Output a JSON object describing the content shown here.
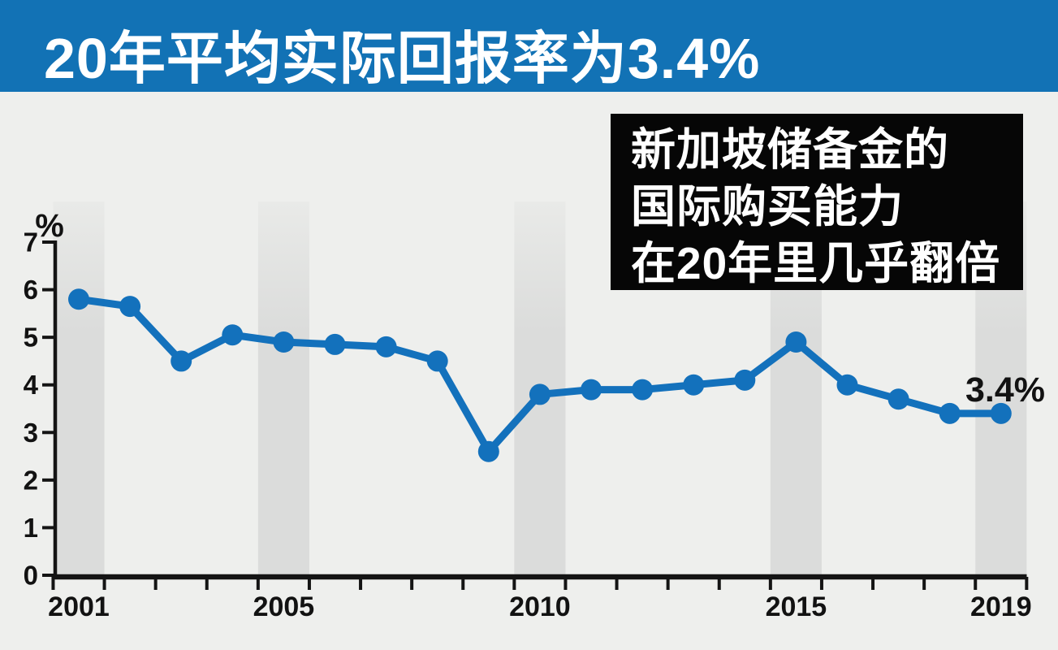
{
  "header": {
    "title": "20年平均实际回报率为3.4%"
  },
  "callout": {
    "lines": [
      "新加坡储备金的",
      "国际购买能力",
      "在20年里几乎翻倍"
    ]
  },
  "colors": {
    "header_bg": "#1272B5",
    "header_fg": "#FFFFFF",
    "background": "#EEEFED",
    "band": "#DBDCDB",
    "band_fade_top": "#E9EAE8",
    "line": "#1371BC",
    "axis": "#141414",
    "label": "#121212",
    "callout_bg": "#060606",
    "callout_fg": "#FFFFFF"
  },
  "chart_data": {
    "type": "line",
    "title": "20年平均实际回报率为3.4%",
    "xlabel": "",
    "ylabel": "%",
    "ylim": [
      0,
      7
    ],
    "y_ticks": [
      0,
      1,
      2,
      3,
      4,
      5,
      6,
      7
    ],
    "x": [
      2001,
      2002,
      2003,
      2004,
      2005,
      2006,
      2007,
      2008,
      2009,
      2010,
      2011,
      2012,
      2013,
      2014,
      2015,
      2016,
      2017,
      2018,
      2019
    ],
    "values": [
      5.8,
      5.65,
      4.5,
      5.05,
      4.9,
      4.85,
      4.8,
      4.5,
      2.6,
      3.8,
      3.9,
      3.9,
      4.0,
      4.1,
      4.9,
      4.0,
      3.7,
      3.4,
      3.4
    ],
    "x_tick_labels": [
      "2001",
      "2005",
      "2010",
      "2015",
      "2019"
    ],
    "highlight_years": [
      2001,
      2005,
      2010,
      2015,
      2019
    ],
    "end_label": "3.4%",
    "grid": false,
    "legend": false
  }
}
